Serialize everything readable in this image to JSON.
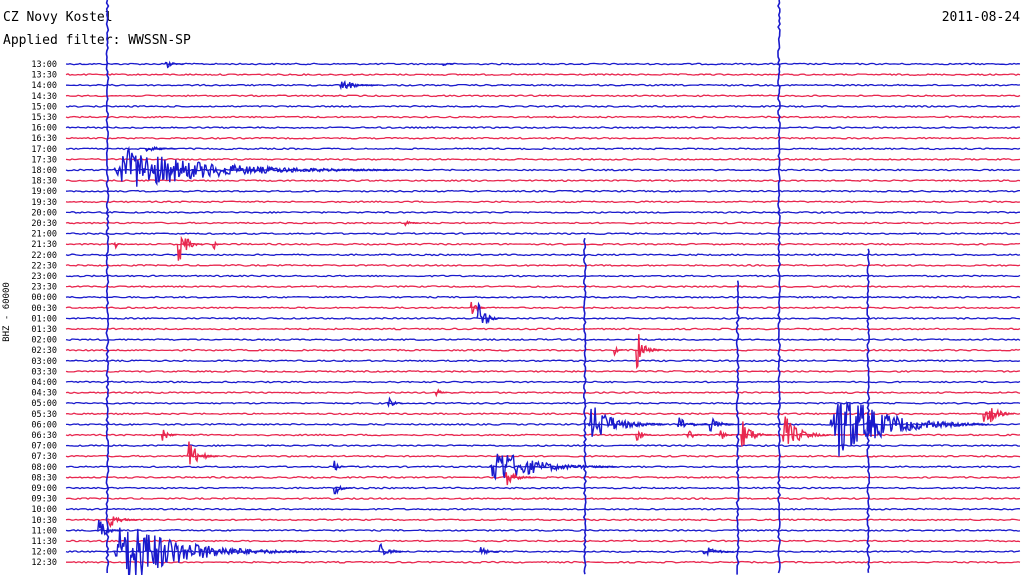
{
  "header": {
    "station": "CZ Novy Kostel",
    "filter": "Applied filter: WWSSN-SP",
    "date": "2011-08-24",
    "channel": "BHZ - 60000"
  },
  "colors": {
    "trace_a": "#1a1acc",
    "trace_b": "#e8274f"
  },
  "chart_data": {
    "type": "line",
    "title": "",
    "rows": [
      "13:00",
      "13:30",
      "14:00",
      "14:30",
      "15:00",
      "15:30",
      "16:00",
      "16:30",
      "17:00",
      "17:30",
      "18:00",
      "18:30",
      "19:00",
      "19:30",
      "20:00",
      "20:30",
      "21:00",
      "21:30",
      "22:00",
      "22:30",
      "23:00",
      "23:30",
      "00:00",
      "00:30",
      "01:00",
      "01:30",
      "02:00",
      "02:30",
      "03:00",
      "03:30",
      "04:00",
      "04:30",
      "05:00",
      "05:30",
      "06:00",
      "06:30",
      "07:00",
      "07:30",
      "08:00",
      "08:30",
      "09:00",
      "09:30",
      "10:00",
      "10:30",
      "11:00",
      "11:30",
      "12:00",
      "12:30"
    ],
    "x_range_minutes": [
      0,
      30
    ],
    "events": [
      {
        "row": "13:00",
        "minute": 3.1,
        "amplitude": 0.4,
        "duration": 0.6
      },
      {
        "row": "13:00",
        "minute": 11.8,
        "amplitude": 0.25,
        "duration": 0.4
      },
      {
        "row": "14:00",
        "minute": 8.6,
        "amplitude": 0.5,
        "duration": 1.2
      },
      {
        "row": "17:00",
        "minute": 2.5,
        "amplitude": 0.3,
        "duration": 1.0
      },
      {
        "row": "18:00",
        "minute": 1.5,
        "amplitude": 1.5,
        "duration": 9.0
      },
      {
        "row": "20:30",
        "minute": 10.6,
        "amplitude": 0.3,
        "duration": 0.5
      },
      {
        "row": "21:30",
        "minute": 1.5,
        "amplitude": 0.5,
        "duration": 0.3
      },
      {
        "row": "21:30",
        "minute": 3.5,
        "amplitude": 1.5,
        "duration": 0.8
      },
      {
        "row": "21:30",
        "minute": 4.6,
        "amplitude": 0.6,
        "duration": 0.3
      },
      {
        "row": "00:30",
        "minute": 12.7,
        "amplitude": 0.7,
        "duration": 0.5
      },
      {
        "row": "01:00",
        "minute": 12.9,
        "amplitude": 1.4,
        "duration": 0.8
      },
      {
        "row": "02:30",
        "minute": 17.9,
        "amplitude": 1.5,
        "duration": 0.8
      },
      {
        "row": "02:30",
        "minute": 17.2,
        "amplitude": 0.4,
        "duration": 0.3
      },
      {
        "row": "04:30",
        "minute": 11.6,
        "amplitude": 0.4,
        "duration": 0.4
      },
      {
        "row": "05:00",
        "minute": 10.1,
        "amplitude": 0.5,
        "duration": 0.5
      },
      {
        "row": "05:30",
        "minute": 28.8,
        "amplitude": 1.3,
        "duration": 1.0
      },
      {
        "row": "06:00",
        "minute": 16.4,
        "amplitude": 1.4,
        "duration": 2.5
      },
      {
        "row": "06:00",
        "minute": 19.2,
        "amplitude": 0.6,
        "duration": 1.0
      },
      {
        "row": "06:00",
        "minute": 20.2,
        "amplitude": 0.8,
        "duration": 0.8
      },
      {
        "row": "06:00",
        "minute": 24.0,
        "amplitude": 2.5,
        "duration": 5.0
      },
      {
        "row": "06:30",
        "minute": 3.0,
        "amplitude": 0.6,
        "duration": 0.5
      },
      {
        "row": "06:30",
        "minute": 17.9,
        "amplitude": 0.7,
        "duration": 0.5
      },
      {
        "row": "06:30",
        "minute": 19.5,
        "amplitude": 0.7,
        "duration": 0.5
      },
      {
        "row": "06:30",
        "minute": 20.5,
        "amplitude": 0.6,
        "duration": 0.5
      },
      {
        "row": "06:30",
        "minute": 21.2,
        "amplitude": 1.2,
        "duration": 1.0
      },
      {
        "row": "06:30",
        "minute": 22.5,
        "amplitude": 1.4,
        "duration": 1.5
      },
      {
        "row": "07:30",
        "minute": 3.8,
        "amplitude": 1.2,
        "duration": 1.0
      },
      {
        "row": "08:00",
        "minute": 8.4,
        "amplitude": 0.5,
        "duration": 0.4
      },
      {
        "row": "08:00",
        "minute": 13.3,
        "amplitude": 1.4,
        "duration": 4.0
      },
      {
        "row": "08:30",
        "minute": 13.8,
        "amplitude": 0.6,
        "duration": 1.0
      },
      {
        "row": "09:00",
        "minute": 8.4,
        "amplitude": 0.6,
        "duration": 0.6
      },
      {
        "row": "10:30",
        "minute": 1.3,
        "amplitude": 0.6,
        "duration": 1.0
      },
      {
        "row": "11:00",
        "minute": 1.0,
        "amplitude": 0.9,
        "duration": 0.8
      },
      {
        "row": "12:00",
        "minute": 1.5,
        "amplitude": 2.5,
        "duration": 6.0
      },
      {
        "row": "12:00",
        "minute": 9.8,
        "amplitude": 1.0,
        "duration": 0.8
      },
      {
        "row": "12:00",
        "minute": 13.0,
        "amplitude": 0.4,
        "duration": 0.6
      },
      {
        "row": "12:00",
        "minute": 20.0,
        "amplitude": 0.6,
        "duration": 1.0
      }
    ],
    "large_event_spans": [
      {
        "minute": 1.3,
        "from_row": "13:00",
        "to_row": "12:30"
      },
      {
        "minute": 22.4,
        "from_row": "13:00",
        "to_row": "12:30"
      },
      {
        "minute": 16.3,
        "from_row": "21:30",
        "to_row": "12:30"
      },
      {
        "minute": 21.1,
        "from_row": "23:30",
        "to_row": "12:30"
      },
      {
        "minute": 25.2,
        "from_row": "22:00",
        "to_row": "12:30"
      }
    ]
  }
}
